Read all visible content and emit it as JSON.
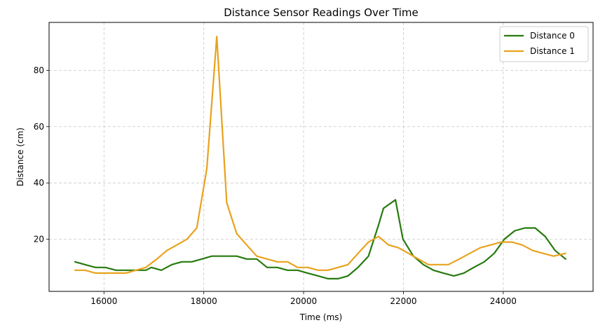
{
  "chart_data": {
    "type": "line",
    "title": "Distance Sensor Readings Over Time",
    "xlabel": "Time (ms)",
    "ylabel": "Distance (cm)",
    "xlim": [
      14900,
      25800
    ],
    "ylim": [
      1.5,
      97
    ],
    "xticks": [
      16000,
      18000,
      20000,
      22000,
      24000
    ],
    "yticks": [
      20,
      40,
      60,
      80
    ],
    "grid": true,
    "legend_position": "top-right",
    "series": [
      {
        "name": "Distance 0",
        "color": "#267a0e",
        "x": [
          15420,
          15620,
          15830,
          16030,
          16240,
          16440,
          16640,
          16840,
          16950,
          17150,
          17360,
          17560,
          17760,
          17960,
          18160,
          18360,
          18460,
          18660,
          18860,
          19060,
          19270,
          19470,
          19680,
          19880,
          20080,
          20290,
          20490,
          20690,
          20890,
          21090,
          21300,
          21500,
          21600,
          21840,
          21990,
          22200,
          22400,
          22600,
          22800,
          23010,
          23210,
          23410,
          23620,
          23820,
          24020,
          24230,
          24430,
          24640,
          24840,
          25040,
          25250
        ],
        "values": [
          12,
          11,
          10,
          10,
          9,
          9,
          9,
          9,
          10,
          9,
          11,
          12,
          12,
          13,
          14,
          14,
          14,
          14,
          13,
          13,
          10,
          10,
          9,
          9,
          8,
          7,
          6,
          6,
          7,
          10,
          14,
          25,
          31,
          34,
          20,
          14,
          11,
          9,
          8,
          7,
          8,
          10,
          12,
          15,
          20,
          23,
          24,
          24,
          21,
          16,
          13
        ]
      },
      {
        "name": "Distance 1",
        "color": "#e8a21d",
        "x": [
          15420,
          15620,
          15830,
          16030,
          16240,
          16440,
          16640,
          16840,
          17060,
          17260,
          17460,
          17660,
          17860,
          18060,
          18260,
          18460,
          18660,
          18860,
          19060,
          19270,
          19470,
          19680,
          19880,
          20080,
          20290,
          20490,
          20690,
          20890,
          21090,
          21300,
          21500,
          21700,
          21900,
          22100,
          22300,
          22500,
          22700,
          22900,
          23120,
          23330,
          23540,
          23750,
          23960,
          24170,
          24380,
          24590,
          24800,
          25010,
          25250
        ],
        "values": [
          9,
          9,
          8,
          8,
          8,
          8,
          9,
          10,
          13,
          16,
          18,
          20,
          24,
          45,
          92,
          33,
          22,
          18,
          14,
          13,
          12,
          12,
          10,
          10,
          9,
          9,
          10,
          11,
          15,
          19,
          21,
          18,
          17,
          15,
          13,
          11,
          11,
          11,
          13,
          15,
          17,
          18,
          19,
          19,
          18,
          16,
          15,
          14,
          15
        ]
      }
    ]
  }
}
